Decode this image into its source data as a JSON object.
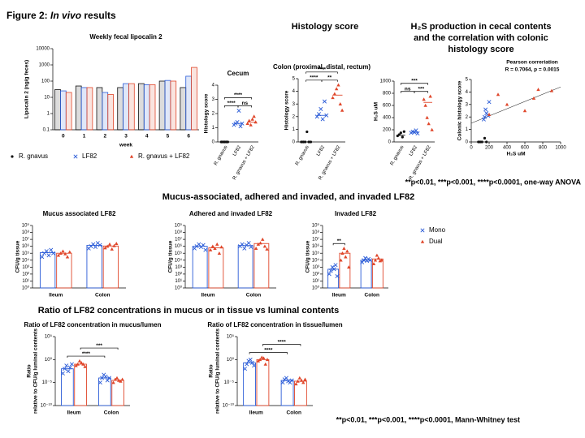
{
  "header": {
    "figure_prefix": "Figure 2: ",
    "figure_emphasis": "In vivo",
    "figure_suffix": " results",
    "histology": "Histology score",
    "h2s_line1": "H₂S production in cecal contents",
    "h2s_line2": "and the correlation with colonic",
    "h2s_line3": "histology score",
    "section2": "Mucus-associated, adhered and invaded, and invaded LF82",
    "section3": "Ratio of LF82 concentrations in mucus or in tissue vs luminal contents",
    "note1": "**p<0.01, ***p<0.001, ****p<0.0001, one-way ANOVA",
    "note2": "**p<0.01, ***p<0.001, ****p<0.0001, Mann-Whitney test"
  },
  "chart_data": [
    {
      "type": "bar",
      "title": "Weekly fecal lipocalin 2",
      "xlabel": "week",
      "ylabel": "Lipocalin 2 (ng/g feces)",
      "categories": [
        "0",
        "1",
        "2",
        "3",
        "4",
        "5",
        "6"
      ],
      "log_y": true,
      "ylim": [
        0.1,
        10000
      ],
      "yticks": [
        0.1,
        1,
        10,
        100,
        1000,
        10000
      ],
      "series": [
        {
          "name": "R. gnavus",
          "color": "#111111",
          "marker": "dot",
          "values": [
            30,
            50,
            40,
            40,
            70,
            100,
            40
          ]
        },
        {
          "name": "LF82",
          "color": "#2a5bd7",
          "marker": "x",
          "values": [
            25,
            40,
            20,
            70,
            60,
            110,
            200
          ]
        },
        {
          "name": "R. gnavus + LF82",
          "color": "#e0472b",
          "marker": "triangle",
          "values": [
            20,
            40,
            15,
            70,
            60,
            100,
            700
          ]
        }
      ]
    },
    {
      "type": "dot",
      "title": "Cecum",
      "ylabel": "Histology score",
      "categories": [
        "R. gnavus",
        "LF82",
        "R. gnavus + LF82"
      ],
      "colors": [
        "#111111",
        "#2a5bd7",
        "#e0472b"
      ],
      "markers": [
        "dot",
        "x",
        "triangle"
      ],
      "values": [
        0,
        1.3,
        1.4
      ],
      "points": [
        [
          0,
          0,
          0,
          0,
          0
        ],
        [
          1.2,
          1.3,
          1.4,
          2.2,
          1.1,
          1.3
        ],
        [
          1.3,
          1.5,
          1.2,
          1.6,
          1.8,
          1.4
        ]
      ],
      "ylim": [
        0,
        4
      ],
      "yticks": [
        0,
        1,
        2,
        3,
        4
      ],
      "comparisons": [
        {
          "from": 0,
          "to": 1,
          "label": "****"
        },
        {
          "from": 1,
          "to": 2,
          "label": "ns"
        },
        {
          "from": 0,
          "to": 2,
          "label": "****"
        }
      ]
    },
    {
      "type": "dot",
      "title": "Colon (proximal, distal, rectum)",
      "ylabel": "Histology score",
      "categories": [
        "R. gnavus",
        "LF82",
        "R. gnavus + LF82"
      ],
      "colors": [
        "#111111",
        "#2a5bd7",
        "#e0472b"
      ],
      "markers": [
        "dot",
        "x",
        "triangle"
      ],
      "values": [
        0,
        2.1,
        3.7
      ],
      "points": [
        [
          0,
          0,
          0,
          0.8,
          0,
          0
        ],
        [
          2.0,
          2.2,
          2.6,
          1.8,
          3.2,
          2.1
        ],
        [
          3.5,
          3.8,
          4.2,
          4.5,
          3.0,
          2.5
        ]
      ],
      "ylim": [
        0,
        5
      ],
      "yticks": [
        0,
        1,
        2,
        3,
        4,
        5
      ],
      "comparisons": [
        {
          "from": 0,
          "to": 1,
          "label": "****"
        },
        {
          "from": 1,
          "to": 2,
          "label": "**"
        },
        {
          "from": 0,
          "to": 2,
          "label": "****"
        }
      ]
    },
    {
      "type": "dot",
      "ylabel": "H₂S uM",
      "categories": [
        "R. gnavus",
        "LF82",
        "R. gnavus + LF82"
      ],
      "colors": [
        "#111111",
        "#2a5bd7",
        "#e0472b"
      ],
      "markers": [
        "dot",
        "x",
        "triangle"
      ],
      "values": [
        110,
        160,
        650
      ],
      "points": [
        [
          100,
          120,
          150,
          80,
          170
        ],
        [
          150,
          170,
          160,
          190,
          140
        ],
        [
          700,
          600,
          400,
          300,
          750,
          200
        ]
      ],
      "ylim": [
        0,
        1000
      ],
      "yticks": [
        0,
        200,
        400,
        600,
        800,
        1000
      ],
      "comparisons": [
        {
          "from": 0,
          "to": 1,
          "label": "ns"
        },
        {
          "from": 1,
          "to": 2,
          "label": "***"
        },
        {
          "from": 0,
          "to": 2,
          "label": "***"
        }
      ]
    },
    {
      "type": "scatter",
      "xlabel": "H₂S uM",
      "ylabel": "Colonic histology score",
      "annotation": [
        "Pearson correriation",
        "R = 0.7064, p = 0.0015"
      ],
      "xlim": [
        0,
        1000
      ],
      "xticks": [
        0,
        200,
        400,
        600,
        800,
        1000
      ],
      "ylim": [
        0,
        5
      ],
      "yticks": [
        0,
        1,
        2,
        3,
        4,
        5
      ],
      "series": [
        {
          "color": "#111111",
          "marker": "dot",
          "x": [
            80,
            120,
            150,
            170,
            100
          ],
          "y": [
            0,
            0,
            0.3,
            0,
            0
          ]
        },
        {
          "color": "#2a5bd7",
          "marker": "x",
          "x": [
            150,
            170,
            200,
            160,
            140,
            190
          ],
          "y": [
            2.0,
            2.3,
            3.2,
            2.6,
            1.8,
            2.1
          ]
        },
        {
          "color": "#e0472b",
          "marker": "triangle",
          "x": [
            700,
            600,
            400,
            300,
            750,
            200,
            900
          ],
          "y": [
            3.5,
            2.5,
            3.0,
            3.8,
            4.2,
            2.2,
            4.1
          ]
        }
      ],
      "fit_line": {
        "x": [
          0,
          1000
        ],
        "y": [
          1.5,
          4.4
        ]
      }
    },
    {
      "type": "grouped_dot",
      "title": "Mucus associated LF82",
      "ylabel": "CFU/g tissue",
      "log_y": true,
      "categories": [
        "Ileum",
        "Colon"
      ],
      "ylim": [
        1,
        1000000000.0
      ],
      "yticks": [
        {
          "value": 1,
          "label": "10⁰"
        },
        {
          "value": 10,
          "label": "10¹"
        },
        {
          "value": 100,
          "label": "10²"
        },
        {
          "value": 1000,
          "label": "10³"
        },
        {
          "value": 10000.0,
          "label": "10⁴"
        },
        {
          "value": 100000.0,
          "label": "10⁵"
        },
        {
          "value": 1000000.0,
          "label": "10⁶"
        },
        {
          "value": 10000000.0,
          "label": "10⁷"
        },
        {
          "value": 100000000.0,
          "label": "10⁸"
        },
        {
          "value": 1000000000.0,
          "label": "10⁹"
        }
      ],
      "series": [
        {
          "color": "#2a5bd7",
          "marker": "x",
          "values": [
            120000.0,
            1400000.0
          ],
          "points": [
            [
              30000.0,
              100000.0,
              200000.0,
              50000.0,
              300000.0,
              100000.0
            ],
            [
              500000.0,
              1000000.0,
              2000000.0,
              800000.0,
              3000000.0,
              1500000.0
            ]
          ]
        },
        {
          "color": "#e0472b",
          "marker": "triangle",
          "values": [
            100000.0,
            1100000.0
          ],
          "points": [
            [
              50000.0,
              100000.0,
              200000.0,
              80000.0,
              30000.0,
              150000.0
            ],
            [
              600000.0,
              1000000.0,
              2000000.0,
              400000.0,
              1200000.0,
              2500000.0
            ]
          ]
        }
      ]
    },
    {
      "type": "grouped_dot",
      "title": "Adhered and invaded LF82",
      "ylabel": "CFU/g tissue",
      "log_y": true,
      "categories": [
        "Ileum",
        "Colon"
      ],
      "ylim": [
        1,
        1000000000.0
      ],
      "yticks": [
        {
          "value": 1,
          "label": "10⁰"
        },
        {
          "value": 10,
          "label": "10¹"
        },
        {
          "value": 100,
          "label": "10²"
        },
        {
          "value": 1000,
          "label": "10³"
        },
        {
          "value": 10000.0,
          "label": "10⁴"
        },
        {
          "value": 100000.0,
          "label": "10⁵"
        },
        {
          "value": 1000000.0,
          "label": "10⁶"
        },
        {
          "value": 10000000.0,
          "label": "10⁷"
        },
        {
          "value": 100000000.0,
          "label": "10⁸"
        },
        {
          "value": 1000000000.0,
          "label": "10⁹"
        }
      ],
      "series": [
        {
          "color": "#2a5bd7",
          "marker": "x",
          "values": [
            1000000.0,
            1300000.0
          ],
          "points": [
            [
              500000.0,
              1000000.0,
              2000000.0,
              800000.0,
              1500000.0,
              300000.0
            ],
            [
              1000000.0,
              2000000.0,
              500000.0,
              1500000.0,
              3000000.0,
              800000.0
            ]
          ]
        },
        {
          "color": "#e0472b",
          "marker": "triangle",
          "values": [
            600000.0,
            2500000.0
          ],
          "points": [
            [
              300000.0,
              1000000.0,
              500000.0,
              2000000.0,
              100000.0,
              800000.0
            ],
            [
              500000.0,
              2000000.0,
              3000000.0,
              10000000.0,
              1000000.0,
              400000.0
            ]
          ]
        }
      ]
    },
    {
      "type": "grouped_dot",
      "title": "Invaded LF82",
      "ylabel": "CFU/g tissue",
      "log_y": true,
      "legend": true,
      "categories": [
        "Ileum",
        "Colon"
      ],
      "ylim": [
        1,
        1000000000.0
      ],
      "yticks": [
        {
          "value": 1,
          "label": "10⁰"
        },
        {
          "value": 10,
          "label": "10¹"
        },
        {
          "value": 100,
          "label": "10²"
        },
        {
          "value": 1000,
          "label": "10³"
        },
        {
          "value": 10000.0,
          "label": "10⁴"
        },
        {
          "value": 100000.0,
          "label": "10⁵"
        },
        {
          "value": 1000000.0,
          "label": "10⁶"
        },
        {
          "value": 10000000.0,
          "label": "10⁷"
        },
        {
          "value": 100000000.0,
          "label": "10⁸"
        },
        {
          "value": 1000000000.0,
          "label": "10⁹"
        }
      ],
      "series": [
        {
          "name": "Mono",
          "color": "#2a5bd7",
          "marker": "x",
          "values": [
            500,
            10000.0
          ],
          "points": [
            [
              100,
              300,
              1000,
              500,
              2000,
              50
            ],
            [
              5000.0,
              10000.0,
              20000.0,
              8000.0,
              15000.0,
              10000.0
            ]
          ]
        },
        {
          "name": "Dual",
          "color": "#e0472b",
          "marker": "triangle",
          "values": [
            100000.0,
            15000.0
          ],
          "points": [
            [
              10000.0,
              100000.0,
              500000.0,
              30000.0,
              200000.0,
              1000.0
            ],
            [
              3000.0,
              10000.0,
              50000.0,
              20000.0,
              8000.0,
              10000.0
            ]
          ]
        }
      ],
      "comparisons": [
        {
          "from": [
            0,
            0
          ],
          "to": [
            0,
            1
          ],
          "label": "**"
        }
      ]
    },
    {
      "type": "grouped_dot",
      "title": "Ratio of LF82 concentration in mucus/lumen",
      "ylabel": [
        "Ratio",
        "relative to CFU/g luminal contents"
      ],
      "log_y": true,
      "categories": [
        "Ileum",
        "Colon"
      ],
      "ylim": [
        1e-10,
        100000.0
      ],
      "yticks": [
        {
          "value": 1e-10,
          "label": "10⁻¹⁰"
        },
        {
          "value": 1e-05,
          "label": "10⁻⁵"
        },
        {
          "value": 1,
          "label": "10⁰"
        },
        {
          "value": 100000.0,
          "label": "10⁵"
        }
      ],
      "series": [
        {
          "color": "#2a5bd7",
          "marker": "x",
          "values": [
            0.01,
            0.0001
          ],
          "points": [
            [
              0.001,
              0.01,
              0.05,
              0.003,
              0.02,
              0.1
            ],
            [
              1e-05,
              0.0001,
              0.0005,
              0.0002,
              3e-05,
              0.0001
            ]
          ]
        },
        {
          "color": "#e0472b",
          "marker": "triangle",
          "values": [
            0.1,
            3e-05
          ],
          "points": [
            [
              0.05,
              0.1,
              0.5,
              0.2,
              0.1,
              0.03
            ],
            [
              1e-05,
              5e-05,
              0.0001,
              3e-05,
              2e-05,
              5e-05
            ]
          ]
        }
      ],
      "comparisons": [
        {
          "from": [
            0,
            0
          ],
          "to": [
            1,
            0
          ],
          "label": "****"
        },
        {
          "from": [
            0,
            1
          ],
          "to": [
            1,
            1
          ],
          "label": "***"
        }
      ]
    },
    {
      "type": "grouped_dot",
      "title": "Ratio of LF82 concentration in tissue/lumen",
      "ylabel": [
        "Ratio",
        "relative to CFU/g luminal contents"
      ],
      "log_y": true,
      "categories": [
        "Ileum",
        "Colon"
      ],
      "ylim": [
        1e-10,
        100000.0
      ],
      "yticks": [
        {
          "value": 1e-10,
          "label": "10⁻¹⁰"
        },
        {
          "value": 1e-05,
          "label": "10⁻⁵"
        },
        {
          "value": 1,
          "label": "10⁰"
        },
        {
          "value": 100000.0,
          "label": "10⁵"
        }
      ],
      "series": [
        {
          "color": "#2a5bd7",
          "marker": "x",
          "values": [
            0.2,
            3e-05
          ],
          "points": [
            [
              0.01,
              0.1,
              0.5,
              1,
              0.2,
              0.05
            ],
            [
              1e-05,
              5e-05,
              0.0001,
              2e-05,
              1e-05,
              3e-05
            ]
          ]
        },
        {
          "color": "#e0472b",
          "marker": "triangle",
          "values": [
            1,
            2e-05
          ],
          "points": [
            [
              0.5,
              1,
              3,
              2,
              0.1,
              1
            ],
            [
              5e-06,
              2e-05,
              0.0001,
              3e-05,
              1e-05,
              5e-05
            ]
          ]
        }
      ],
      "comparisons": [
        {
          "from": [
            0,
            0
          ],
          "to": [
            1,
            0
          ],
          "label": "****"
        },
        {
          "from": [
            0,
            1
          ],
          "to": [
            1,
            1
          ],
          "label": "****"
        }
      ]
    }
  ]
}
